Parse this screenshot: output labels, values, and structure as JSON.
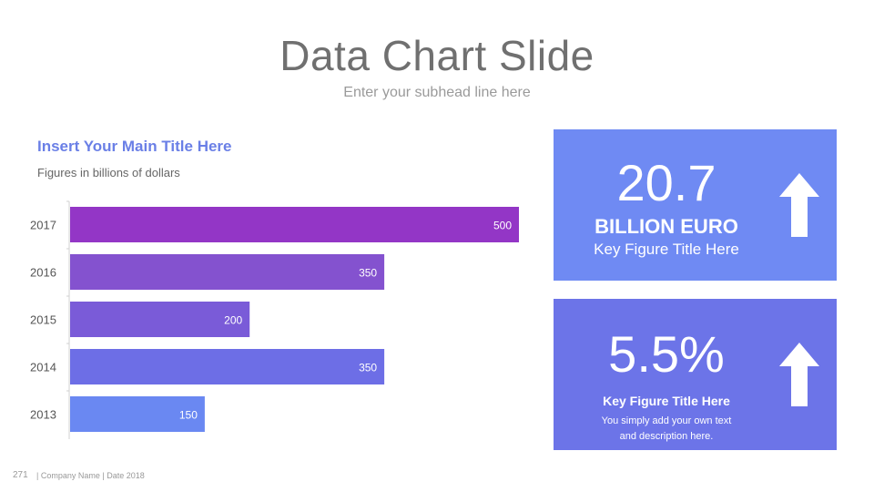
{
  "slide": {
    "title": "Data Chart Slide",
    "subtitle": "Enter your subhead line here"
  },
  "chart_data": {
    "type": "bar",
    "orientation": "horizontal",
    "title": "Insert Your Main Title Here",
    "subtitle": "Figures in billions of dollars",
    "categories": [
      "2017",
      "2016",
      "2015",
      "2014",
      "2013"
    ],
    "values": [
      500,
      350,
      200,
      350,
      150
    ],
    "data_labels": [
      "500",
      "350",
      "200",
      "350",
      "150"
    ],
    "xlim": [
      0,
      500
    ],
    "grid": false,
    "legend": "none",
    "colors": [
      "#9336c6",
      "#8452cf",
      "#7a5bd8",
      "#6d6ee6",
      "#6a88f2"
    ]
  },
  "kpis": [
    {
      "value": "20.7",
      "unit": "BILLION EURO",
      "label": "Key Figure Title Here",
      "icon": "arrow-up-icon",
      "color": "#6f8af3"
    },
    {
      "value": "5.5%",
      "label": "Key Figure Title Here",
      "description_line1": "You simply add your own text",
      "description_line2": "and description here.",
      "icon": "arrow-up-icon",
      "color": "#6c74e8"
    }
  ],
  "footer": {
    "page_number": "271",
    "text": "| Company Name | Date 2018"
  }
}
